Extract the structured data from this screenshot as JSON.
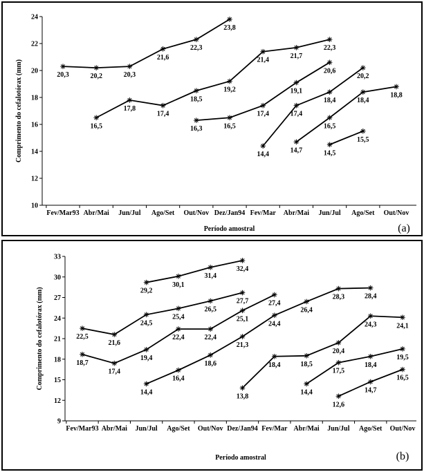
{
  "chart_data": [
    {
      "type": "line",
      "panel_label": "(a)",
      "xlabel": "Período amostral",
      "ylabel": "Comprimento do cefalotórax (mm)",
      "categories": [
        "Fev/Mar93",
        "Abr/Mai",
        "Jun/Jul",
        "Ago/Set",
        "Out/Nov",
        "Dez/Jan94",
        "Fev/Mar",
        "Abr/Mai",
        "Jun/Jul",
        "Ago/Set",
        "Out/Nov"
      ],
      "ylim": [
        10,
        24
      ],
      "yticks": [
        10,
        12,
        14,
        16,
        18,
        20,
        22,
        24
      ],
      "series": [
        {
          "points": [
            [
              0,
              20.3
            ],
            [
              1,
              20.2
            ],
            [
              2,
              20.3
            ],
            [
              3,
              21.6
            ],
            [
              4,
              22.3
            ],
            [
              5,
              23.8
            ]
          ],
          "labels": [
            "20,3",
            "20,2",
            "20,3",
            "21,6",
            "22,3",
            "23,8"
          ]
        },
        {
          "points": [
            [
              1,
              16.5
            ],
            [
              2,
              17.8
            ],
            [
              3,
              17.4
            ],
            [
              4,
              18.5
            ],
            [
              5,
              19.2
            ],
            [
              6,
              21.4
            ],
            [
              7,
              21.7
            ],
            [
              8,
              22.3
            ]
          ],
          "labels": [
            "16,5",
            "17,8",
            "17,4",
            "18,5",
            "19,2",
            "21,4",
            "21,7",
            "22,3"
          ]
        },
        {
          "points": [
            [
              4,
              16.3
            ],
            [
              5,
              16.5
            ],
            [
              6,
              17.4
            ],
            [
              7,
              19.1
            ],
            [
              8,
              20.6
            ]
          ],
          "labels": [
            "16,3",
            "16,5",
            "17,4",
            "19,1",
            "20,6"
          ]
        },
        {
          "points": [
            [
              6,
              14.4
            ],
            [
              7,
              17.4
            ],
            [
              8,
              18.4
            ],
            [
              9,
              20.2
            ]
          ],
          "labels": [
            "14,4",
            "17,4",
            "18,4",
            "20,2"
          ]
        },
        {
          "points": [
            [
              7,
              14.7
            ],
            [
              8,
              16.5
            ],
            [
              9,
              18.4
            ],
            [
              10,
              18.8
            ]
          ],
          "labels": [
            "14,7",
            "16,5",
            "18,4",
            "18,8"
          ]
        },
        {
          "points": [
            [
              8,
              14.5
            ],
            [
              9,
              15.5
            ]
          ],
          "labels": [
            "14,5",
            "15,5"
          ]
        }
      ]
    },
    {
      "type": "line",
      "panel_label": "(b)",
      "xlabel": "Período amostral",
      "ylabel": "Comprimento do cefalotórax (mm)",
      "categories": [
        "Fev/Mar93",
        "Abr/Mai",
        "Jun/Jul",
        "Ago/Set",
        "Out/Nov",
        "Dez/Jan94",
        "Fev/Mar",
        "Abr/Mai",
        "Jun/Jul",
        "Ago/Set",
        "Out/Nov"
      ],
      "ylim": [
        9,
        33
      ],
      "yticks": [
        9,
        12,
        15,
        18,
        21,
        24,
        27,
        30,
        33
      ],
      "series": [
        {
          "points": [
            [
              2,
              29.2
            ],
            [
              3,
              30.1
            ],
            [
              4,
              31.4
            ],
            [
              5,
              32.4
            ]
          ],
          "labels": [
            "29,2",
            "30,1",
            "31,4",
            "32,4"
          ]
        },
        {
          "points": [
            [
              0,
              22.5
            ],
            [
              1,
              21.6
            ],
            [
              2,
              24.5
            ],
            [
              3,
              25.4
            ],
            [
              4,
              26.5
            ],
            [
              5,
              27.7
            ]
          ],
          "labels": [
            "22,5",
            "21,6",
            "24,5",
            "25,4",
            "26,5",
            "27,7"
          ]
        },
        {
          "points": [
            [
              0,
              18.7
            ],
            [
              1,
              17.4
            ],
            [
              2,
              19.4
            ],
            [
              3,
              22.4
            ],
            [
              4,
              22.4
            ],
            [
              5,
              25.1
            ],
            [
              6,
              27.4
            ]
          ],
          "labels": [
            "18,7",
            "17,4",
            "19,4",
            "22,4",
            "22,4",
            "25,1",
            "27,4"
          ]
        },
        {
          "points": [
            [
              2,
              14.4
            ],
            [
              3,
              16.4
            ],
            [
              4,
              18.6
            ],
            [
              5,
              21.3
            ],
            [
              6,
              24.4
            ],
            [
              7,
              26.4
            ],
            [
              8,
              28.3
            ],
            [
              9,
              28.4
            ]
          ],
          "labels": [
            "14,4",
            "16,4",
            "18,6",
            "21,3",
            "24,4",
            "26,4",
            "28,3",
            "28,4"
          ]
        },
        {
          "points": [
            [
              5,
              13.8
            ],
            [
              6,
              18.4
            ],
            [
              7,
              18.5
            ],
            [
              8,
              20.4
            ],
            [
              9,
              24.3
            ],
            [
              10,
              24.1
            ]
          ],
          "labels": [
            "13,8",
            "18,4",
            "18,5",
            "20,4",
            "24,3",
            "24,1"
          ]
        },
        {
          "points": [
            [
              7,
              14.4
            ],
            [
              8,
              17.5
            ],
            [
              9,
              18.4
            ],
            [
              10,
              19.5
            ]
          ],
          "labels": [
            "14,4",
            "17,5",
            "18,4",
            "19,5"
          ]
        },
        {
          "points": [
            [
              8,
              12.6
            ],
            [
              9,
              14.7
            ],
            [
              10,
              16.5
            ]
          ],
          "labels": [
            "12,6",
            "14,7",
            "16,5"
          ]
        }
      ]
    }
  ]
}
